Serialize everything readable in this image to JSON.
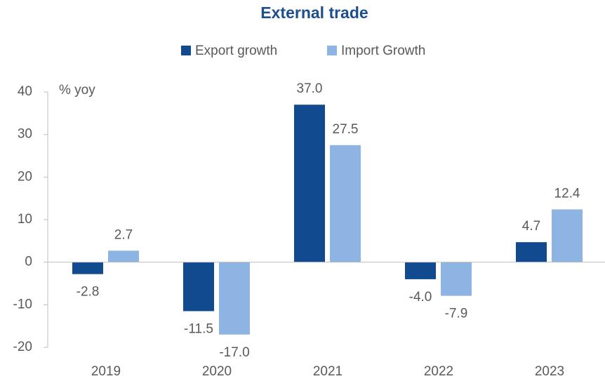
{
  "chart_data": {
    "type": "bar",
    "title": "External trade",
    "y_label": "% yoy",
    "categories": [
      "2019",
      "2020",
      "2021",
      "2022",
      "2023"
    ],
    "series": [
      {
        "name": "Export growth",
        "color": "#124a8f",
        "values": [
          -2.8,
          -11.5,
          37.0,
          -4.0,
          4.7
        ],
        "value_labels": [
          "-2.8",
          "-11.5",
          "37.0",
          "-4.0",
          "4.7"
        ]
      },
      {
        "name": "Import Growth",
        "color": "#8db4e2",
        "values": [
          2.7,
          -17.0,
          27.5,
          -7.9,
          12.4
        ],
        "value_labels": [
          "2.7",
          "-17.0",
          "27.5",
          "-7.9",
          "12.4"
        ]
      }
    ],
    "ylim": [
      -20,
      40
    ],
    "yticks": [
      -20,
      -10,
      0,
      10,
      20,
      30,
      40
    ],
    "legend": "top"
  }
}
